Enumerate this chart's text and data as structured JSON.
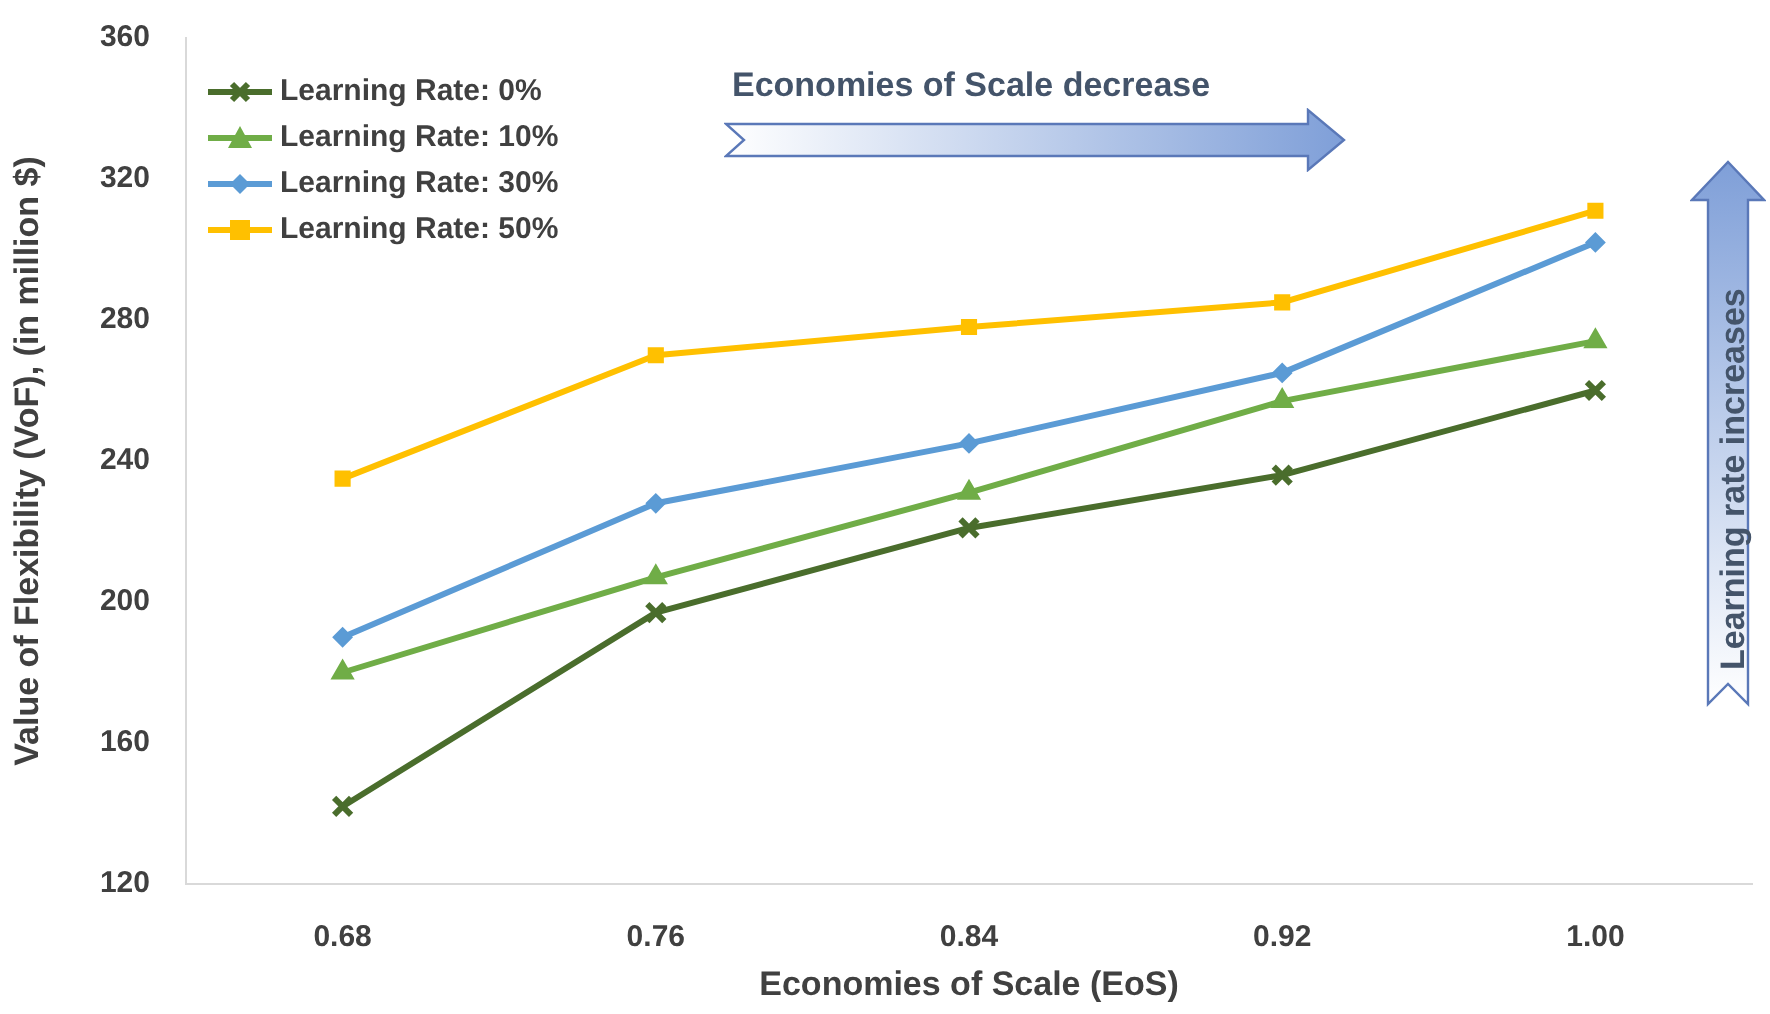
{
  "chart_data": {
    "type": "line",
    "xlabel": "Economies of Scale (EoS)",
    "ylabel": "Value of Flexibility (VoF), (in million $)",
    "categories": [
      "0.68",
      "0.76",
      "0.84",
      "0.92",
      "1.00"
    ],
    "ylim": [
      120,
      360
    ],
    "yticks": [
      120,
      160,
      200,
      240,
      280,
      320,
      360
    ],
    "grid": false,
    "legend": "top left",
    "annotations": [
      "Economies of Scale decrease",
      "Learning rate increases"
    ],
    "series": [
      {
        "name": "Learning Rate: 0%",
        "color": "#4a6d2c",
        "marker": "cross",
        "values": [
          142,
          197,
          221,
          236,
          260
        ]
      },
      {
        "name": "Learning Rate: 10%",
        "color": "#70ad47",
        "marker": "triangle",
        "values": [
          180,
          207,
          231,
          257,
          274
        ]
      },
      {
        "name": "Learning Rate: 30%",
        "color": "#5b9bd5",
        "marker": "diamond",
        "values": [
          190,
          228,
          245,
          265,
          302
        ]
      },
      {
        "name": "Learning Rate: 50%",
        "color": "#ffc000",
        "marker": "square",
        "values": [
          235,
          270,
          278,
          285,
          311
        ]
      }
    ]
  }
}
